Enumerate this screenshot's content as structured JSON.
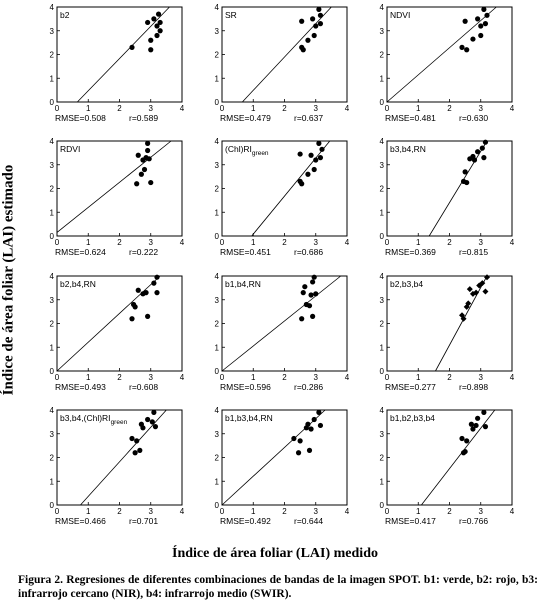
{
  "figure": {
    "ylabel": "Índice de área foliar (LAI) estimado",
    "xlabel": "Índice de área foliar (LAI) medido",
    "caption_label": "Figura 2.",
    "caption_text": "Regresiones de diferentes combinaciones de bandas de la imagen SPOT. b1: verde, b2: rojo, b3: infrarrojo cercano (NIR), b4: infrarrojo medio (SWIR)."
  },
  "axes": {
    "xlim": [
      0,
      4
    ],
    "ylim": [
      0,
      4
    ],
    "ticks": [
      "0",
      "1",
      "2",
      "3",
      "4"
    ]
  },
  "chart_data": [
    {
      "type": "scatter",
      "title": "b2",
      "rmse": "RMSE=0.508",
      "r": "r=0.589",
      "fit_line": [
        [
          0.65,
          0
        ],
        [
          3.6,
          4
        ]
      ],
      "marker": "dot",
      "points": [
        [
          2.4,
          2.3
        ],
        [
          2.9,
          3.35
        ],
        [
          3.0,
          2.6
        ],
        [
          3.1,
          3.5
        ],
        [
          3.2,
          3.2
        ],
        [
          3.3,
          3.35
        ],
        [
          3.0,
          2.2
        ],
        [
          3.2,
          2.8
        ],
        [
          3.25,
          3.7
        ],
        [
          3.3,
          3.0
        ]
      ]
    },
    {
      "type": "scatter",
      "title": "SR",
      "rmse": "RMSE=0.479",
      "r": "r=0.637",
      "fit_line": [
        [
          0.65,
          0
        ],
        [
          3.5,
          4
        ]
      ],
      "marker": "dot",
      "points": [
        [
          2.55,
          2.3
        ],
        [
          2.55,
          3.4
        ],
        [
          2.6,
          2.2
        ],
        [
          2.75,
          2.6
        ],
        [
          2.9,
          3.5
        ],
        [
          2.95,
          2.8
        ],
        [
          3.0,
          3.2
        ],
        [
          3.1,
          3.9
        ],
        [
          3.15,
          3.3
        ],
        [
          3.15,
          3.65
        ]
      ]
    },
    {
      "type": "scatter",
      "title": "NDVI",
      "rmse": "RMSE=0.481",
      "r": "r=0.630",
      "fit_line": [
        [
          0,
          0
        ],
        [
          3.5,
          4
        ]
      ],
      "marker": "dot",
      "points": [
        [
          2.4,
          2.3
        ],
        [
          2.5,
          3.4
        ],
        [
          2.55,
          2.2
        ],
        [
          2.75,
          2.65
        ],
        [
          2.9,
          3.5
        ],
        [
          3.0,
          2.8
        ],
        [
          3.0,
          3.2
        ],
        [
          3.1,
          3.9
        ],
        [
          3.15,
          3.3
        ],
        [
          3.2,
          3.65
        ]
      ]
    },
    {
      "type": "scatter",
      "title": "RDVI",
      "rmse": "RMSE=0.624",
      "r": "r=0.222",
      "fit_line": [
        [
          0,
          0.15
        ],
        [
          3.65,
          4
        ]
      ],
      "marker": "dot",
      "points": [
        [
          2.55,
          2.2
        ],
        [
          2.6,
          3.4
        ],
        [
          2.7,
          2.6
        ],
        [
          2.75,
          3.2
        ],
        [
          2.8,
          2.8
        ],
        [
          2.85,
          3.3
        ],
        [
          2.9,
          3.9
        ],
        [
          2.95,
          3.25
        ],
        [
          3.0,
          2.25
        ],
        [
          2.9,
          3.6
        ]
      ]
    },
    {
      "type": "scatter",
      "title": "(Chl)RI",
      "title_sub": "green",
      "rmse": "RMSE=0.451",
      "r": "r=0.686",
      "fit_line": [
        [
          0.95,
          0
        ],
        [
          3.45,
          4
        ]
      ],
      "marker": "dot",
      "points": [
        [
          2.5,
          2.3
        ],
        [
          2.5,
          3.45
        ],
        [
          2.55,
          2.2
        ],
        [
          2.75,
          2.6
        ],
        [
          2.85,
          3.4
        ],
        [
          2.95,
          2.8
        ],
        [
          3.0,
          3.2
        ],
        [
          3.1,
          3.9
        ],
        [
          3.15,
          3.3
        ],
        [
          3.2,
          3.65
        ]
      ]
    },
    {
      "type": "scatter",
      "title": "b3,b4,RN",
      "rmse": "RMSE=0.369",
      "r": "r=0.815",
      "fit_line": [
        [
          1.35,
          0
        ],
        [
          3.2,
          4
        ]
      ],
      "marker": "dot",
      "points": [
        [
          2.45,
          2.3
        ],
        [
          2.5,
          2.7
        ],
        [
          2.55,
          2.25
        ],
        [
          2.65,
          3.25
        ],
        [
          2.75,
          3.35
        ],
        [
          2.8,
          3.2
        ],
        [
          2.9,
          3.55
        ],
        [
          3.05,
          3.7
        ],
        [
          3.1,
          3.3
        ],
        [
          3.15,
          3.95
        ]
      ]
    },
    {
      "type": "scatter",
      "title": "b2,b4,RN",
      "rmse": "RMSE=0.493",
      "r": "r=0.608",
      "fit_line": [
        [
          0,
          0
        ],
        [
          3.3,
          4
        ]
      ],
      "marker": "dot",
      "points": [
        [
          2.4,
          2.2
        ],
        [
          2.45,
          2.8
        ],
        [
          2.5,
          2.7
        ],
        [
          2.6,
          3.4
        ],
        [
          2.75,
          3.25
        ],
        [
          2.85,
          3.3
        ],
        [
          2.9,
          2.3
        ],
        [
          3.1,
          3.7
        ],
        [
          3.2,
          3.3
        ],
        [
          3.2,
          3.95
        ]
      ]
    },
    {
      "type": "scatter",
      "title": "b1,b4,RN",
      "rmse": "RMSE=0.596",
      "r": "r=0.286",
      "fit_line": [
        [
          0,
          0
        ],
        [
          3.8,
          4
        ]
      ],
      "marker": "dot",
      "points": [
        [
          2.55,
          2.2
        ],
        [
          2.6,
          3.3
        ],
        [
          2.65,
          3.55
        ],
        [
          2.7,
          2.8
        ],
        [
          2.8,
          2.75
        ],
        [
          2.85,
          3.2
        ],
        [
          2.9,
          2.3
        ],
        [
          2.95,
          3.95
        ],
        [
          3.0,
          3.25
        ],
        [
          2.9,
          3.75
        ]
      ]
    },
    {
      "type": "scatter",
      "title": "b2,b3,b4",
      "rmse": "RMSE=0.277",
      "r": "r=0.898",
      "fit_line": [
        [
          1.55,
          0
        ],
        [
          3.2,
          4
        ]
      ],
      "marker": "diamond",
      "points": [
        [
          2.4,
          2.35
        ],
        [
          2.45,
          2.2
        ],
        [
          2.55,
          2.7
        ],
        [
          2.6,
          2.85
        ],
        [
          2.65,
          3.45
        ],
        [
          2.75,
          3.25
        ],
        [
          2.85,
          3.3
        ],
        [
          2.95,
          3.6
        ],
        [
          3.05,
          3.7
        ],
        [
          3.15,
          3.35
        ],
        [
          3.2,
          3.95
        ]
      ]
    },
    {
      "type": "scatter",
      "title": "b3,b4,(Chl)RI",
      "title_sub": "green",
      "rmse": "RMSE=0.466",
      "r": "r=0.701",
      "fit_line": [
        [
          0.75,
          0
        ],
        [
          3.5,
          4
        ]
      ],
      "marker": "dot",
      "points": [
        [
          2.4,
          2.8
        ],
        [
          2.5,
          2.2
        ],
        [
          2.55,
          2.7
        ],
        [
          2.65,
          2.3
        ],
        [
          2.7,
          3.4
        ],
        [
          2.75,
          3.25
        ],
        [
          2.9,
          3.6
        ],
        [
          3.05,
          3.5
        ],
        [
          3.1,
          3.9
        ],
        [
          3.15,
          3.3
        ]
      ]
    },
    {
      "type": "scatter",
      "title": "b1,b3,b4,RN",
      "rmse": "RMSE=0.492",
      "r": "r=0.644",
      "fit_line": [
        [
          0,
          0
        ],
        [
          3.3,
          4
        ]
      ],
      "marker": "dot",
      "points": [
        [
          2.3,
          2.8
        ],
        [
          2.45,
          2.2
        ],
        [
          2.5,
          2.7
        ],
        [
          2.7,
          3.25
        ],
        [
          2.75,
          3.4
        ],
        [
          2.8,
          2.3
        ],
        [
          2.85,
          3.2
        ],
        [
          2.95,
          3.6
        ],
        [
          3.1,
          3.9
        ],
        [
          3.15,
          3.35
        ]
      ]
    },
    {
      "type": "scatter",
      "title": "b1,b2,b3,b4",
      "rmse": "RMSE=0.417",
      "r": "r=0.766",
      "fit_line": [
        [
          1.1,
          0
        ],
        [
          3.45,
          4
        ]
      ],
      "marker": "dot",
      "points": [
        [
          2.4,
          2.8
        ],
        [
          2.45,
          2.2
        ],
        [
          2.5,
          2.25
        ],
        [
          2.55,
          2.7
        ],
        [
          2.7,
          3.4
        ],
        [
          2.75,
          3.2
        ],
        [
          2.85,
          3.35
        ],
        [
          2.9,
          3.65
        ],
        [
          3.1,
          3.9
        ],
        [
          3.15,
          3.3
        ]
      ]
    }
  ]
}
